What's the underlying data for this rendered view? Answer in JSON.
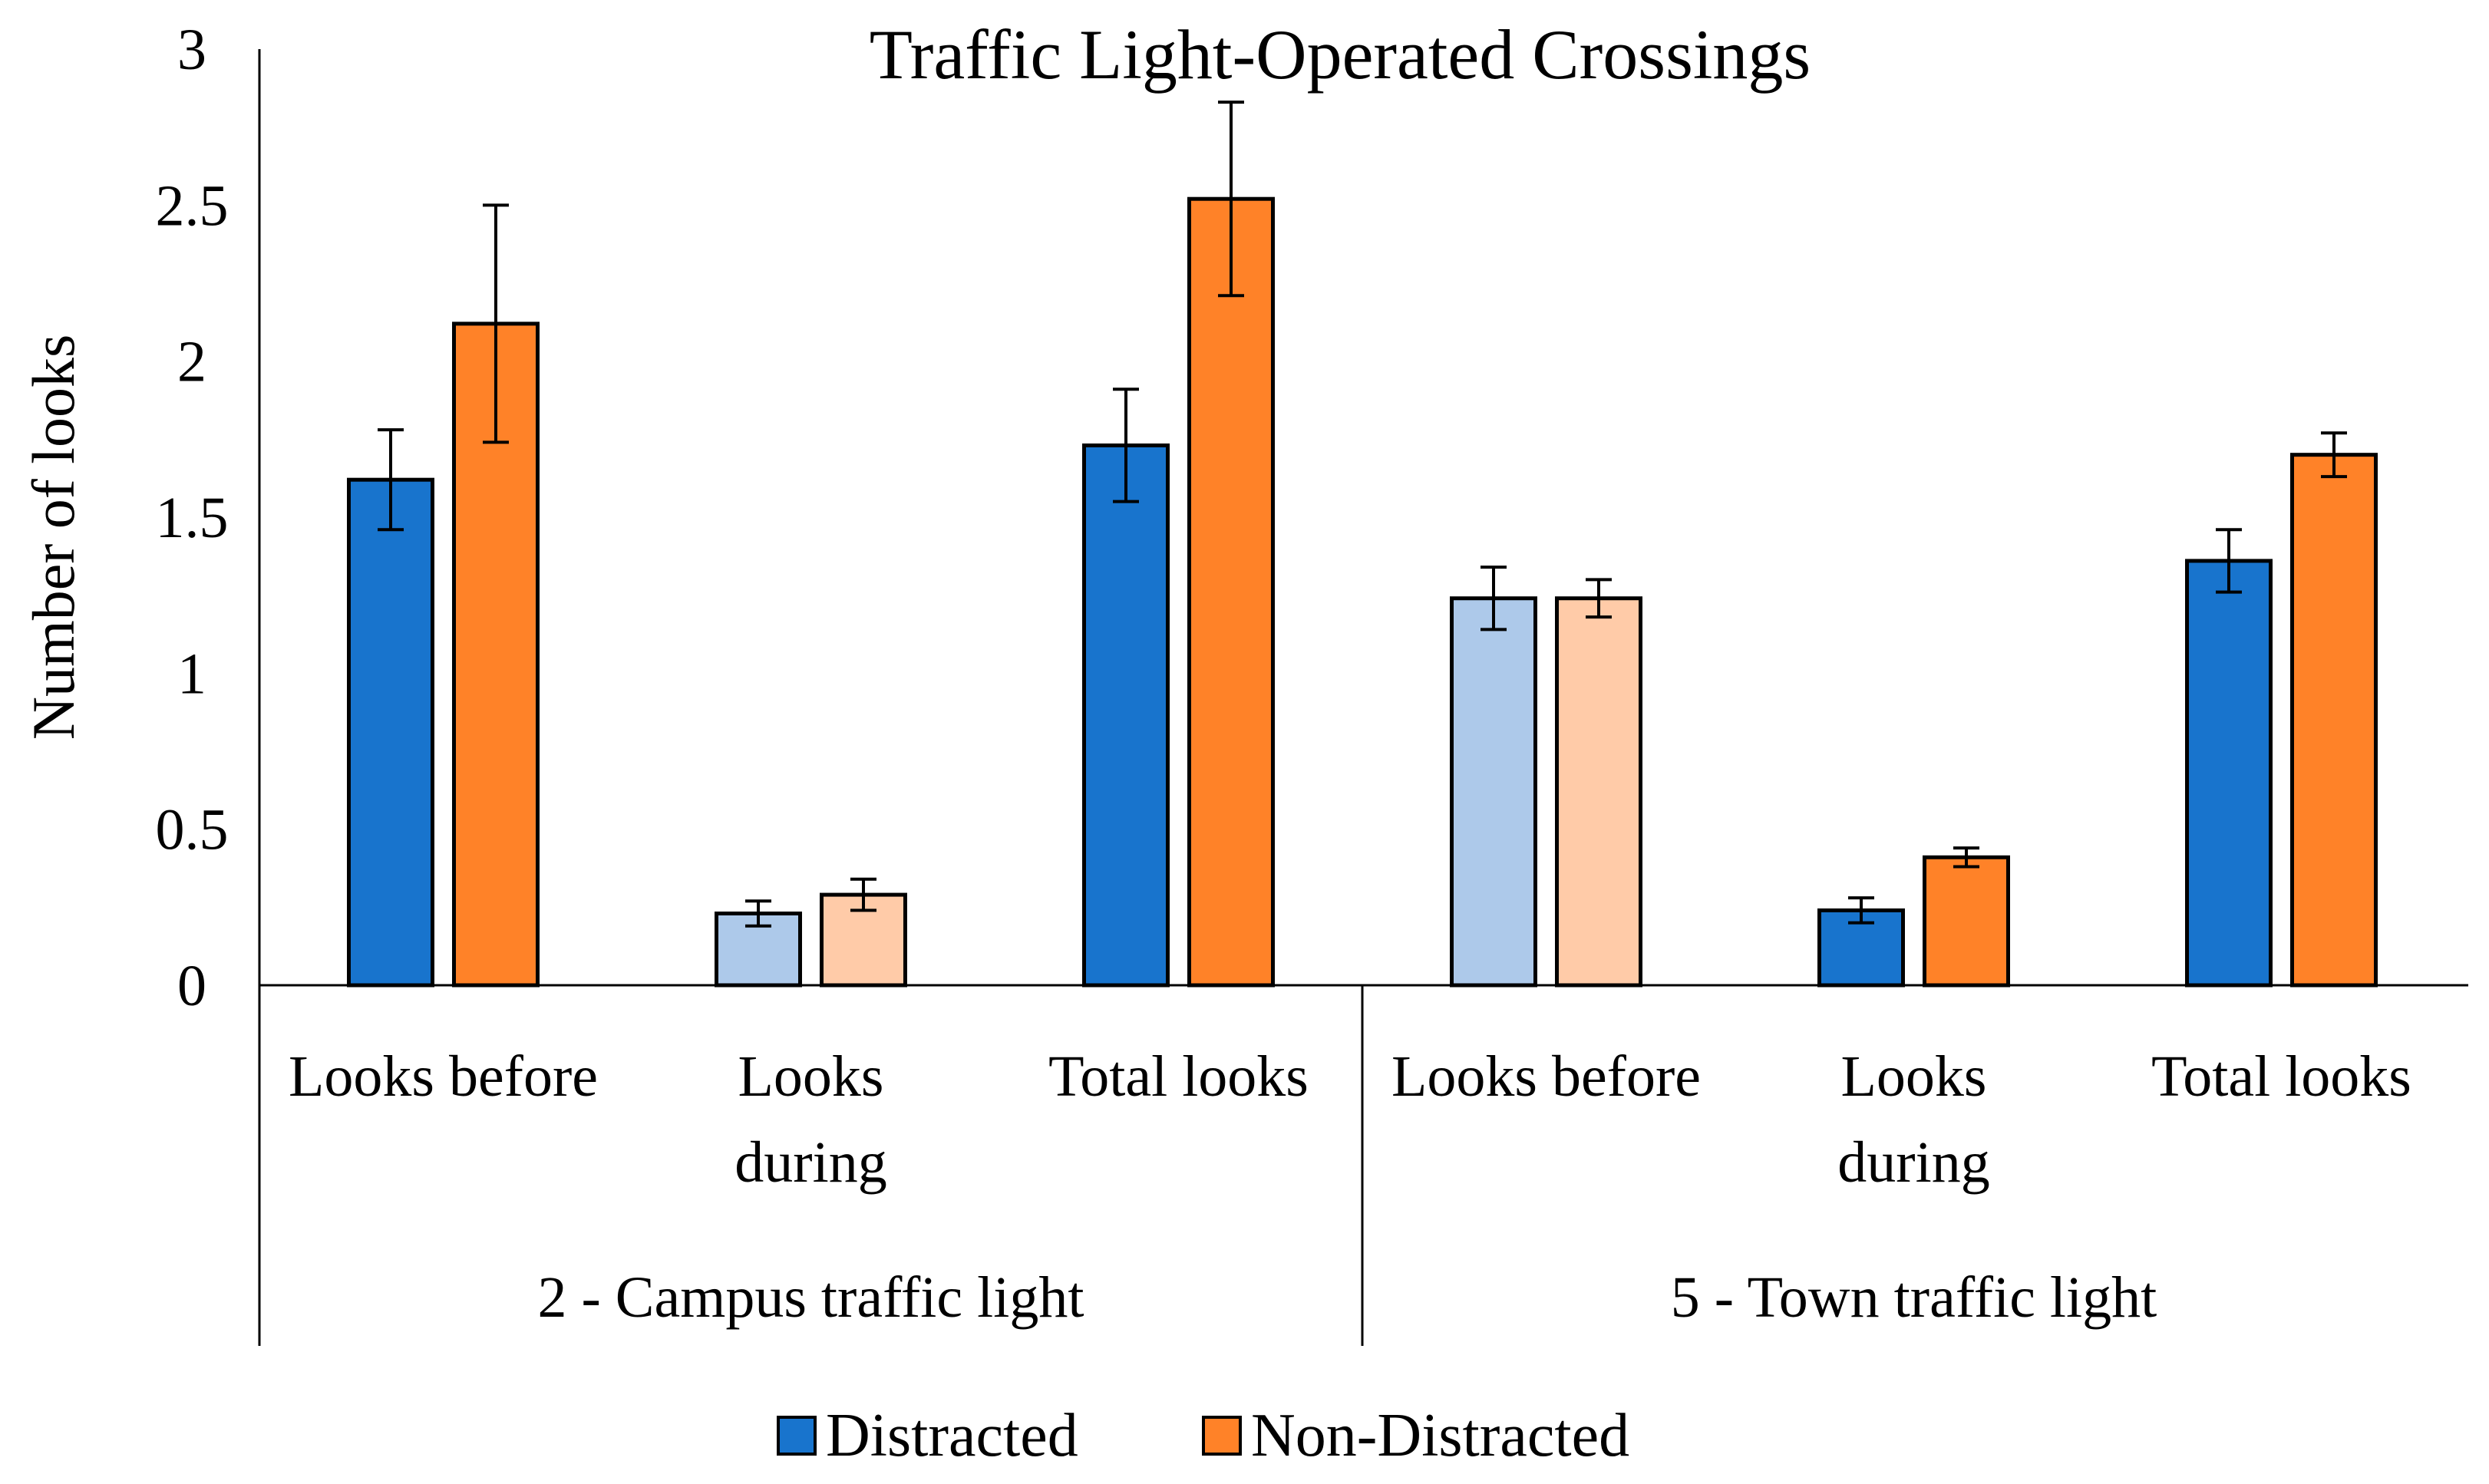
{
  "chart_data": {
    "type": "bar",
    "title": "Traffic Light-Operated Crossings",
    "xlabel": "",
    "ylabel": "Number of looks",
    "ylim": [
      0,
      3
    ],
    "yticks": [
      "0",
      "0.5",
      "1",
      "1.5",
      "2",
      "2.5",
      "3"
    ],
    "grid": false,
    "legend_position": "bottom-center",
    "groups": [
      {
        "label": "2 - Campus traffic light",
        "categories": [
          {
            "label_lines": [
              "Looks before"
            ],
            "faded": false
          },
          {
            "label_lines": [
              "Looks",
              "during"
            ],
            "faded": true
          },
          {
            "label_lines": [
              "Total looks"
            ],
            "faded": false
          }
        ]
      },
      {
        "label": "5 - Town traffic light",
        "categories": [
          {
            "label_lines": [
              "Looks before"
            ],
            "faded": true
          },
          {
            "label_lines": [
              "Looks",
              "during"
            ],
            "faded": false
          },
          {
            "label_lines": [
              "Total looks"
            ],
            "faded": false
          }
        ]
      }
    ],
    "series": [
      {
        "name": "Distracted",
        "color": "#1874CD",
        "faded_color": "#ADC9EA",
        "values": [
          1.62,
          0.23,
          1.73,
          1.24,
          0.24,
          1.36
        ],
        "error": [
          0.16,
          0.04,
          0.18,
          0.1,
          0.04,
          0.1
        ]
      },
      {
        "name": "Non-Distracted",
        "color": "#FF8228",
        "faded_color": "#FFCBA8",
        "values": [
          2.12,
          0.29,
          2.52,
          1.24,
          0.41,
          1.7
        ],
        "error": [
          0.38,
          0.05,
          0.31,
          0.06,
          0.03,
          0.07
        ]
      }
    ]
  }
}
